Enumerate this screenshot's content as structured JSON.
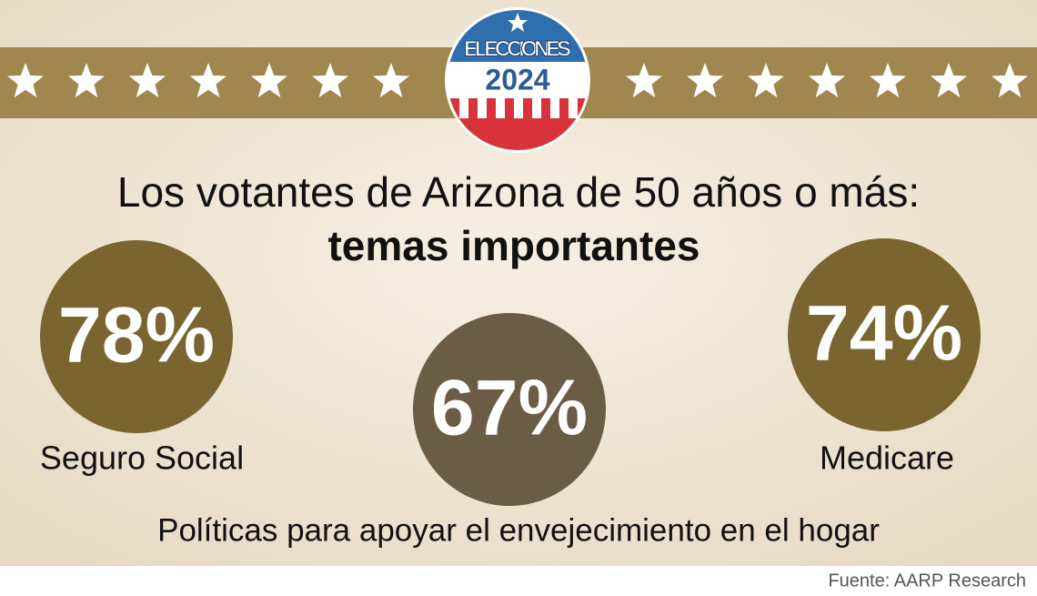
{
  "badge": {
    "top": "ELECCIONES",
    "year": "2024"
  },
  "title": {
    "line1": "Los votantes de Arizona de 50 años o más:",
    "line2": "temas importantes"
  },
  "stats": [
    {
      "value": "78%",
      "label": "Seguro Social"
    },
    {
      "value": "67%",
      "label": "Políticas para apoyar el envejecimiento en el hogar"
    },
    {
      "value": "74%",
      "label": "Medicare"
    }
  ],
  "source": "Fuente: AARP Research"
}
